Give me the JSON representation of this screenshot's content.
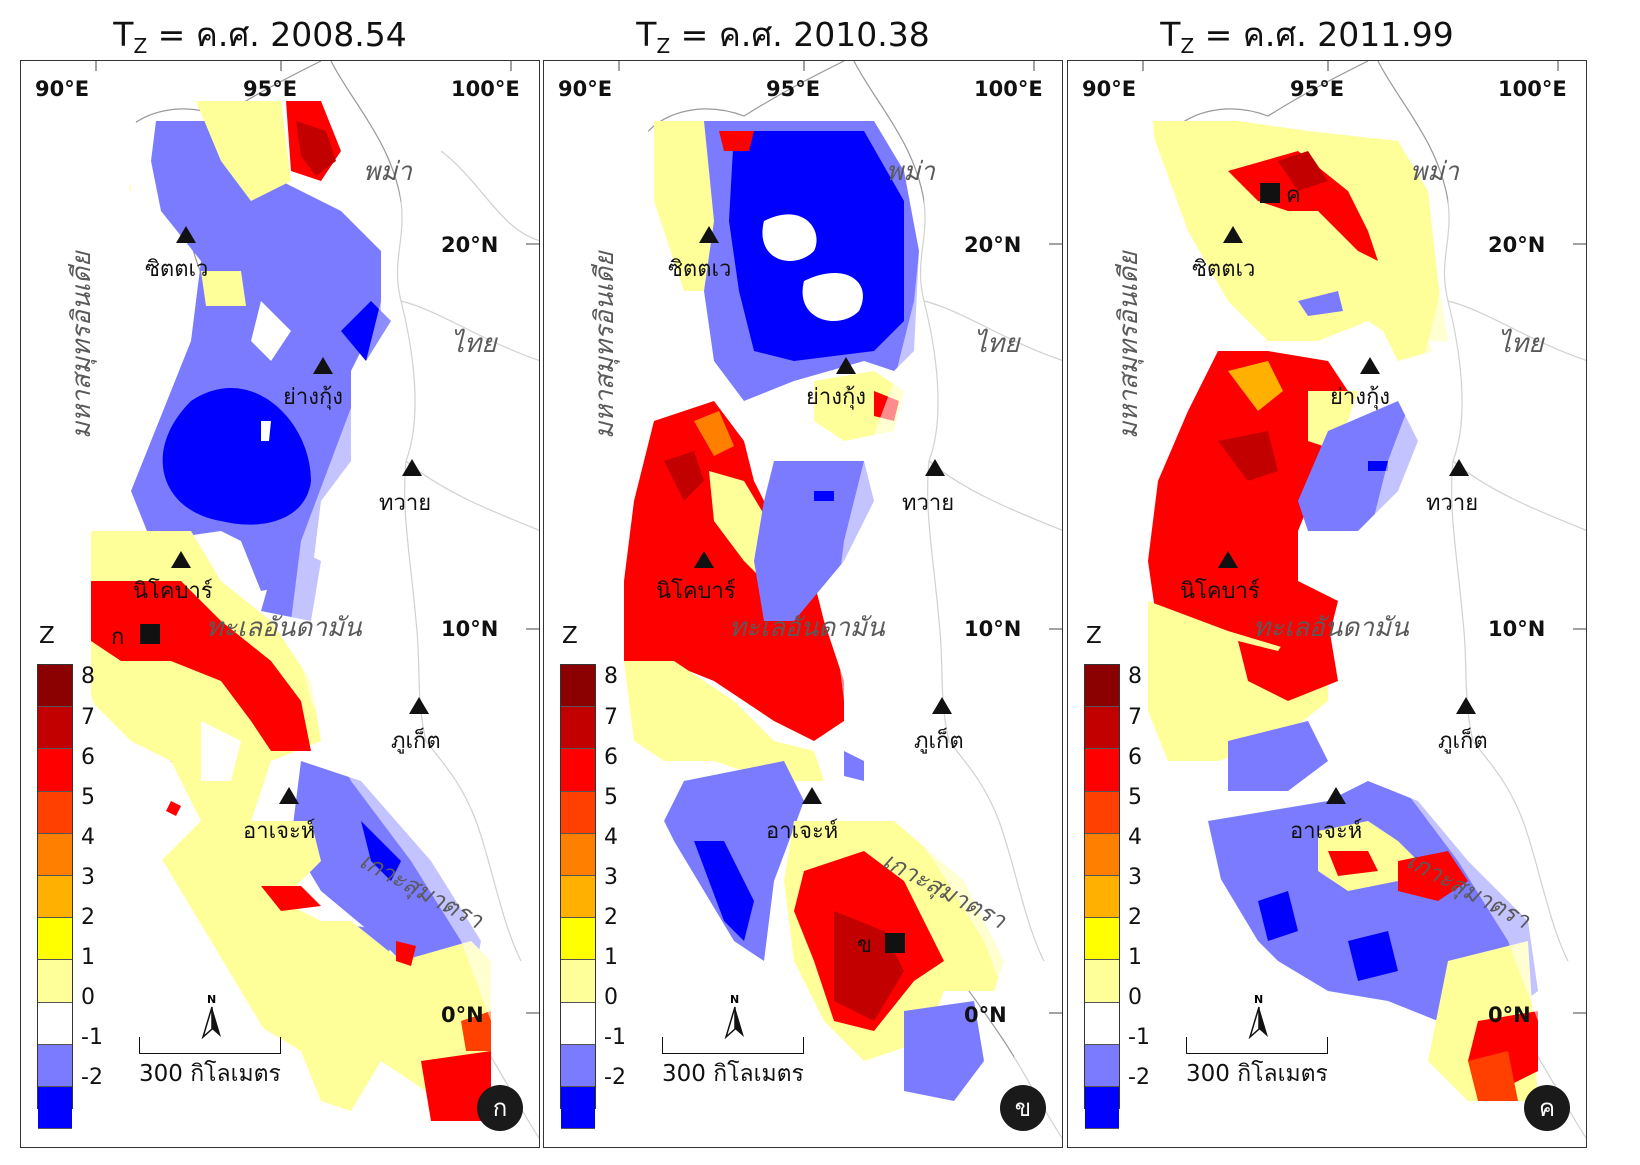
{
  "panels": [
    {
      "title_prefix": "T",
      "title_sub": "Z",
      "title_rest": " = ค.ศ. 2008.54",
      "badge": "ก",
      "marker": {
        "label": "ก",
        "place": "west of Andaman Sea, near Nicobar"
      },
      "icon": "square-marker"
    },
    {
      "title_prefix": "T",
      "title_sub": "Z",
      "title_rest": " = ค.ศ. 2010.38",
      "badge": "ข",
      "marker": {
        "label": "ข",
        "place": "Sumatra"
      },
      "icon": "square-marker"
    },
    {
      "title_prefix": "T",
      "title_sub": "Z",
      "title_rest": " = ค.ศ. 2011.99",
      "badge": "ค",
      "marker": {
        "label": "ค",
        "place": "central Myanmar"
      },
      "icon": "square-marker"
    }
  ],
  "axes": {
    "lon_labels": [
      "90°E",
      "95°E",
      "100°E"
    ],
    "lat_labels": [
      "20°N",
      "10°N",
      "0°N"
    ]
  },
  "places": {
    "sittwe": "ซิตตเว",
    "yangon": "ย่างกุ้ง",
    "dawei": "ทวาย",
    "nicobar": "นิโคบาร์",
    "phuket": "ภูเก็ต",
    "aceh": "อาเจะห์"
  },
  "regions": {
    "myanmar": "พม่า",
    "thailand": "ไทย",
    "indian_ocean": "มหาสมุทรอินเดีย",
    "andaman_sea": "ทะเลอันดามัน",
    "sumatra": "เกาะสุมาตรา"
  },
  "legend": {
    "title": "Z",
    "ticks": [
      "8",
      "7",
      "6",
      "5",
      "4",
      "3",
      "2",
      "1",
      "0",
      "-1",
      "-2"
    ],
    "colors": [
      "#8b0000",
      "#c20000",
      "#ff0000",
      "#ff4000",
      "#ff8000",
      "#ffb000",
      "#ffff00",
      "#ffff99",
      "#ffffff",
      "#7b7bff",
      "#0000ff"
    ]
  },
  "scale": {
    "text": "300 กิโลเมตร"
  },
  "icons": {
    "north_arrow": "north-arrow-icon",
    "city": "triangle-marker-icon"
  },
  "palette": {
    "dark_red": "#a00000",
    "red": "#ff0000",
    "orange": "#ff8000",
    "yellow": "#ffff99",
    "light_blue": "#7b7bff",
    "blue": "#0000ff"
  }
}
